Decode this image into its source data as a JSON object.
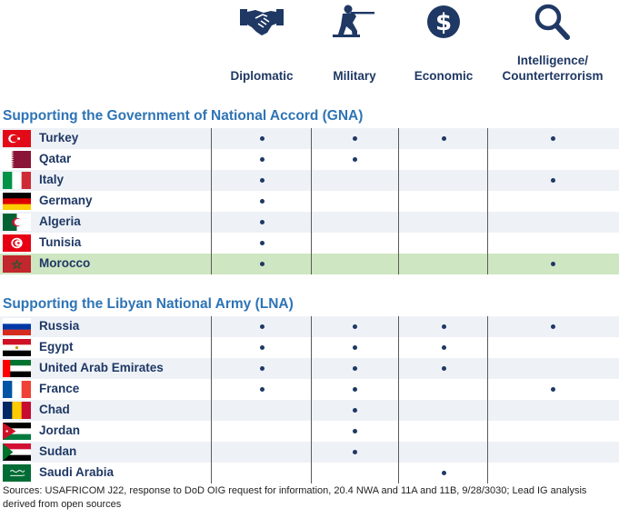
{
  "columns": [
    {
      "label": "Diplomatic",
      "icon": "handshake-icon"
    },
    {
      "label": "Military",
      "icon": "soldier-icon"
    },
    {
      "label": "Economic",
      "icon": "dollar-icon"
    },
    {
      "label": "Intelligence/ Counterterrorism",
      "icon": "magnifier-icon"
    }
  ],
  "groups": [
    {
      "title": "Supporting the Government of National Accord (GNA)",
      "rows": [
        {
          "country": "Turkey",
          "flag": "turkey",
          "support": [
            true,
            true,
            true,
            true
          ]
        },
        {
          "country": "Qatar",
          "flag": "qatar",
          "support": [
            true,
            true,
            false,
            false
          ]
        },
        {
          "country": "Italy",
          "flag": "italy",
          "support": [
            true,
            false,
            false,
            true
          ]
        },
        {
          "country": "Germany",
          "flag": "germany",
          "support": [
            true,
            false,
            false,
            false
          ]
        },
        {
          "country": "Algeria",
          "flag": "algeria",
          "support": [
            true,
            false,
            false,
            false
          ]
        },
        {
          "country": "Tunisia",
          "flag": "tunisia",
          "support": [
            true,
            false,
            false,
            false
          ]
        },
        {
          "country": "Morocco",
          "flag": "morocco",
          "support": [
            true,
            false,
            false,
            true
          ],
          "highlight": true
        }
      ]
    },
    {
      "title": "Supporting the Libyan National Army (LNA)",
      "rows": [
        {
          "country": "Russia",
          "flag": "russia",
          "support": [
            true,
            true,
            true,
            true
          ]
        },
        {
          "country": "Egypt",
          "flag": "egypt",
          "support": [
            true,
            true,
            true,
            false
          ]
        },
        {
          "country": "United Arab Emirates",
          "flag": "uae",
          "support": [
            true,
            true,
            true,
            false
          ]
        },
        {
          "country": "France",
          "flag": "france",
          "support": [
            true,
            true,
            false,
            true
          ]
        },
        {
          "country": "Chad",
          "flag": "chad",
          "support": [
            false,
            true,
            false,
            false
          ]
        },
        {
          "country": "Jordan",
          "flag": "jordan",
          "support": [
            false,
            true,
            false,
            false
          ]
        },
        {
          "country": "Sudan",
          "flag": "sudan",
          "support": [
            false,
            true,
            false,
            false
          ]
        },
        {
          "country": "Saudi Arabia",
          "flag": "saudi",
          "support": [
            false,
            false,
            true,
            false
          ]
        }
      ]
    }
  ],
  "sources": "Sources: USAFRICOM J22, response to DoD OIG request for information, 20.4 NWA and 11A and 11B, 9/28/3030; Lead IG analysis derived from open sources",
  "colors": {
    "navy": "#1f3864",
    "section": "#2e74b5",
    "highlight": "#cfe6c2",
    "alt_row": "#eef2f7"
  }
}
